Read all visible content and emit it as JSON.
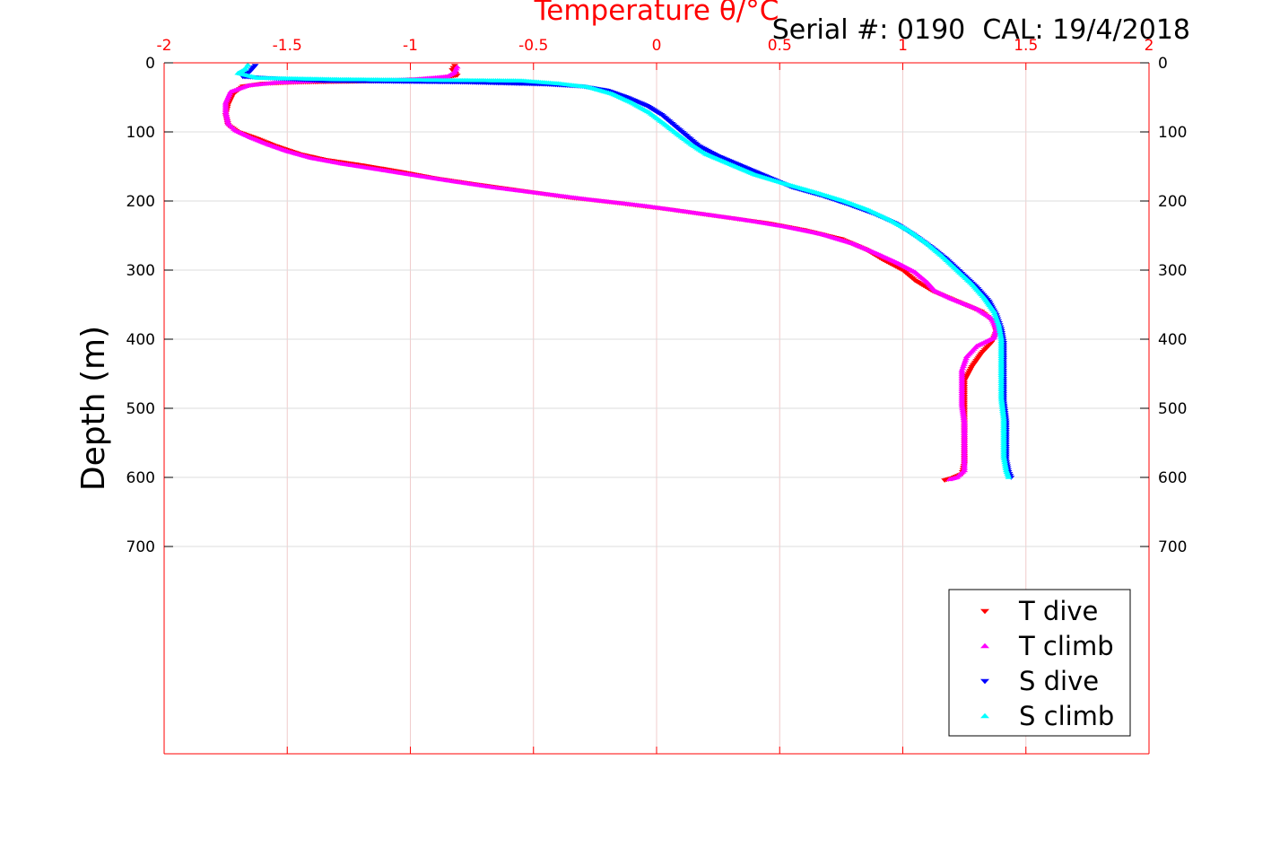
{
  "chart_data": {
    "type": "scatter",
    "title": "Temperature θ/°C",
    "annotation": "Serial #: 0190  CAL: 19/4/2018",
    "ylabel": "Depth (m)",
    "xlim": [
      -2,
      2
    ],
    "ylim": [
      0,
      1000
    ],
    "y_reversed": true,
    "xticks": [
      -2,
      -1.5,
      -1,
      -0.5,
      0,
      0.5,
      1,
      1.5,
      2
    ],
    "xtick_labels": [
      "-2",
      "-1.5",
      "-1",
      "-0.5",
      "0",
      "0.5",
      "1",
      "1.5",
      "2"
    ],
    "yticks": [
      0,
      100,
      200,
      300,
      400,
      500,
      600,
      700
    ],
    "ytick_labels": [
      "0",
      "100",
      "200",
      "300",
      "400",
      "500",
      "600",
      "700"
    ],
    "xaxis_position": "top",
    "yaxis_mirrored": true,
    "grid": true,
    "axis_color": "#ff0000",
    "legend_position": "bottom-right",
    "series": [
      {
        "name": "T dive",
        "marker": "triangle-down",
        "color": "#ff0000",
        "points": [
          [
            -0.82,
            4
          ],
          [
            -0.83,
            10
          ],
          [
            -0.81,
            18
          ],
          [
            -0.88,
            22
          ],
          [
            -1.05,
            25
          ],
          [
            -1.25,
            27
          ],
          [
            -1.45,
            28
          ],
          [
            -1.6,
            30
          ],
          [
            -1.68,
            34
          ],
          [
            -1.72,
            45
          ],
          [
            -1.74,
            60
          ],
          [
            -1.75,
            75
          ],
          [
            -1.74,
            90
          ],
          [
            -1.7,
            100
          ],
          [
            -1.62,
            110
          ],
          [
            -1.55,
            120
          ],
          [
            -1.45,
            132
          ],
          [
            -1.35,
            140
          ],
          [
            -1.2,
            148
          ],
          [
            -1.05,
            157
          ],
          [
            -0.9,
            167
          ],
          [
            -0.75,
            175
          ],
          [
            -0.55,
            185
          ],
          [
            -0.35,
            195
          ],
          [
            -0.15,
            203
          ],
          [
            0.05,
            212
          ],
          [
            0.25,
            222
          ],
          [
            0.45,
            232
          ],
          [
            0.6,
            242
          ],
          [
            0.75,
            255
          ],
          [
            0.85,
            270
          ],
          [
            0.92,
            285
          ],
          [
            1.0,
            300
          ],
          [
            1.05,
            315
          ],
          [
            1.12,
            330
          ],
          [
            1.22,
            345
          ],
          [
            1.32,
            360
          ],
          [
            1.37,
            375
          ],
          [
            1.38,
            390
          ],
          [
            1.36,
            405
          ],
          [
            1.32,
            420
          ],
          [
            1.28,
            440
          ],
          [
            1.25,
            460
          ],
          [
            1.25,
            480
          ],
          [
            1.25,
            500
          ],
          [
            1.25,
            520
          ],
          [
            1.25,
            540
          ],
          [
            1.25,
            560
          ],
          [
            1.25,
            580
          ],
          [
            1.24,
            595
          ],
          [
            1.2,
            601
          ],
          [
            1.17,
            604
          ]
        ]
      },
      {
        "name": "T climb",
        "marker": "triangle-up",
        "color": "#ff00ff",
        "points": [
          [
            -0.81,
            6
          ],
          [
            -0.82,
            14
          ],
          [
            -0.85,
            20
          ],
          [
            -0.98,
            24
          ],
          [
            -1.2,
            26
          ],
          [
            -1.4,
            27
          ],
          [
            -1.55,
            29
          ],
          [
            -1.66,
            33
          ],
          [
            -1.73,
            42
          ],
          [
            -1.75,
            58
          ],
          [
            -1.75,
            72
          ],
          [
            -1.74,
            88
          ],
          [
            -1.71,
            98
          ],
          [
            -1.65,
            108
          ],
          [
            -1.58,
            118
          ],
          [
            -1.5,
            128
          ],
          [
            -1.4,
            138
          ],
          [
            -1.28,
            146
          ],
          [
            -1.12,
            155
          ],
          [
            -0.98,
            163
          ],
          [
            -0.82,
            172
          ],
          [
            -0.65,
            181
          ],
          [
            -0.45,
            190
          ],
          [
            -0.25,
            199
          ],
          [
            -0.05,
            207
          ],
          [
            0.15,
            217
          ],
          [
            0.35,
            227
          ],
          [
            0.52,
            237
          ],
          [
            0.67,
            248
          ],
          [
            0.8,
            262
          ],
          [
            0.9,
            277
          ],
          [
            0.98,
            290
          ],
          [
            1.05,
            303
          ],
          [
            1.1,
            318
          ],
          [
            1.13,
            330
          ],
          [
            1.2,
            342
          ],
          [
            1.3,
            356
          ],
          [
            1.36,
            370
          ],
          [
            1.38,
            385
          ],
          [
            1.37,
            398
          ],
          [
            1.3,
            410
          ],
          [
            1.26,
            425
          ],
          [
            1.24,
            445
          ],
          [
            1.24,
            470
          ],
          [
            1.24,
            495
          ],
          [
            1.25,
            520
          ],
          [
            1.25,
            545
          ],
          [
            1.25,
            570
          ],
          [
            1.25,
            590
          ],
          [
            1.22,
            600
          ],
          [
            1.19,
            603
          ]
        ]
      },
      {
        "name": "S dive",
        "marker": "triangle-down",
        "color": "#0000ff",
        "points": [
          [
            -1.63,
            4
          ],
          [
            -1.65,
            12
          ],
          [
            -1.68,
            20
          ],
          [
            -1.35,
            26
          ],
          [
            -0.78,
            28
          ],
          [
            -0.45,
            31
          ],
          [
            -0.3,
            34
          ],
          [
            -0.2,
            40
          ],
          [
            -0.12,
            50
          ],
          [
            -0.04,
            62
          ],
          [
            0.02,
            75
          ],
          [
            0.07,
            90
          ],
          [
            0.12,
            105
          ],
          [
            0.17,
            120
          ],
          [
            0.25,
            135
          ],
          [
            0.35,
            150
          ],
          [
            0.45,
            165
          ],
          [
            0.55,
            180
          ],
          [
            0.67,
            192
          ],
          [
            0.78,
            205
          ],
          [
            0.88,
            218
          ],
          [
            0.97,
            232
          ],
          [
            1.05,
            250
          ],
          [
            1.12,
            268
          ],
          [
            1.18,
            285
          ],
          [
            1.24,
            305
          ],
          [
            1.3,
            325
          ],
          [
            1.35,
            345
          ],
          [
            1.38,
            365
          ],
          [
            1.4,
            385
          ],
          [
            1.41,
            405
          ],
          [
            1.41,
            430
          ],
          [
            1.41,
            460
          ],
          [
            1.41,
            490
          ],
          [
            1.42,
            520
          ],
          [
            1.42,
            550
          ],
          [
            1.42,
            575
          ],
          [
            1.43,
            592
          ],
          [
            1.44,
            600
          ]
        ]
      },
      {
        "name": "S climb",
        "marker": "triangle-up",
        "color": "#00ffff",
        "points": [
          [
            -1.66,
            3
          ],
          [
            -1.67,
            9
          ],
          [
            -1.7,
            15
          ],
          [
            -1.62,
            22
          ],
          [
            -1.3,
            24
          ],
          [
            -0.95,
            25
          ],
          [
            -0.55,
            26
          ],
          [
            -0.4,
            30
          ],
          [
            -0.28,
            35
          ],
          [
            -0.18,
            45
          ],
          [
            -0.1,
            58
          ],
          [
            -0.03,
            72
          ],
          [
            0.03,
            88
          ],
          [
            0.08,
            102
          ],
          [
            0.14,
            118
          ],
          [
            0.2,
            132
          ],
          [
            0.3,
            147
          ],
          [
            0.4,
            162
          ],
          [
            0.52,
            175
          ],
          [
            0.65,
            188
          ],
          [
            0.76,
            200
          ],
          [
            0.86,
            213
          ],
          [
            0.95,
            228
          ],
          [
            1.03,
            244
          ],
          [
            1.1,
            262
          ],
          [
            1.16,
            280
          ],
          [
            1.22,
            300
          ],
          [
            1.28,
            320
          ],
          [
            1.33,
            340
          ],
          [
            1.37,
            360
          ],
          [
            1.39,
            380
          ],
          [
            1.4,
            400
          ],
          [
            1.4,
            425
          ],
          [
            1.4,
            455
          ],
          [
            1.4,
            485
          ],
          [
            1.41,
            515
          ],
          [
            1.41,
            545
          ],
          [
            1.41,
            570
          ],
          [
            1.42,
            590
          ],
          [
            1.43,
            600
          ]
        ]
      }
    ]
  }
}
